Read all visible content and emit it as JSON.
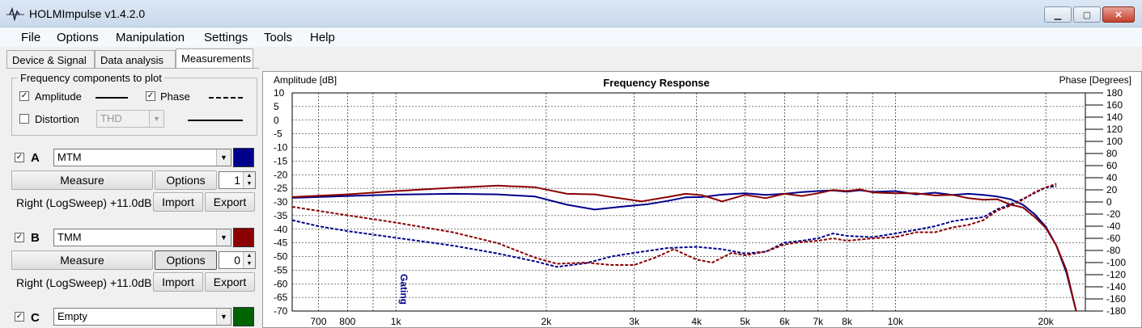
{
  "window": {
    "title": "HOLMImpulse  v1.4.2.0"
  },
  "menu": [
    "File",
    "Options",
    "Manipulation",
    "Settings",
    "Tools",
    "Help"
  ],
  "tabs": [
    "Device & Signal",
    "Data analysis",
    "Measurements"
  ],
  "plot_group": {
    "title": "Frequency components to plot",
    "amplitude_label": "Amplitude",
    "amplitude_checked": true,
    "phase_label": "Phase",
    "phase_checked": true,
    "distortion_label": "Distortion",
    "distortion_checked": false,
    "distortion_select": "THD"
  },
  "measurements": [
    {
      "letter": "A",
      "checked": true,
      "name": "MTM",
      "color": "#00008b",
      "measure_label": "Measure",
      "options_label": "Options",
      "count": "1",
      "info": "Right (LogSweep) +11.0dB",
      "import_label": "Import",
      "export_label": "Export"
    },
    {
      "letter": "B",
      "checked": true,
      "name": "TMM",
      "color": "#8b0000",
      "measure_label": "Measure",
      "options_label": "Options",
      "count": "0",
      "info": "Right (LogSweep) +11.0dB",
      "import_label": "Import",
      "export_label": "Export"
    },
    {
      "letter": "C",
      "checked": true,
      "name": "Empty",
      "color": "#006400"
    }
  ],
  "chart_data": {
    "type": "line",
    "title": "Frequency Response",
    "ylabel": "Amplitude [dB]",
    "y2label": "Phase [Degrees]",
    "xscale": "log",
    "xlim": [
      620,
      24000
    ],
    "ylim": [
      -70,
      10
    ],
    "y2lim": [
      -180,
      180
    ],
    "xticks": [
      700,
      800,
      1000,
      2000,
      3000,
      4000,
      5000,
      6000,
      7000,
      8000,
      10000,
      20000
    ],
    "xtick_labels": [
      "700",
      "800",
      "1k",
      "2k",
      "3k",
      "4k",
      "5k",
      "6k",
      "7k",
      "8k",
      "10k",
      "20k"
    ],
    "yticks": [
      "10",
      "5",
      "0",
      "-5",
      "-10",
      "-15",
      "-20",
      "-25",
      "-30",
      "-35",
      "-40",
      "-45",
      "-50",
      "-55",
      "-60",
      "-65",
      "-70"
    ],
    "y2ticks": [
      "180",
      "160",
      "140",
      "120",
      "100",
      "80",
      "60",
      "40",
      "20",
      "0",
      "-20",
      "-40",
      "-60",
      "-80",
      "-100",
      "-120",
      "-140",
      "-160",
      "-180"
    ],
    "grid": true,
    "annotation": {
      "text": "Gating",
      "x": 1000
    },
    "colors": {
      "A": "#00008b",
      "B": "#8b0000"
    },
    "series": [
      {
        "measurement": "A",
        "component": "amplitude",
        "style": "solid",
        "points": [
          [
            620,
            -28.5
          ],
          [
            800,
            -27.8
          ],
          [
            1000,
            -27.3
          ],
          [
            1300,
            -27.0
          ],
          [
            1600,
            -27.2
          ],
          [
            1900,
            -28.0
          ],
          [
            2200,
            -31.0
          ],
          [
            2500,
            -32.8
          ],
          [
            2800,
            -31.8
          ],
          [
            3200,
            -30.8
          ],
          [
            3500,
            -29.6
          ],
          [
            3800,
            -28.3
          ],
          [
            4100,
            -28.2
          ],
          [
            4500,
            -27.3
          ],
          [
            5000,
            -26.8
          ],
          [
            5500,
            -27.4
          ],
          [
            6000,
            -27.0
          ],
          [
            6500,
            -26.4
          ],
          [
            7000,
            -26.0
          ],
          [
            7500,
            -25.8
          ],
          [
            8000,
            -26.2
          ],
          [
            8500,
            -25.7
          ],
          [
            9000,
            -26.3
          ],
          [
            10000,
            -26.0
          ],
          [
            11000,
            -27.2
          ],
          [
            12000,
            -26.6
          ],
          [
            13000,
            -27.4
          ],
          [
            14000,
            -27.0
          ],
          [
            15000,
            -27.4
          ],
          [
            16000,
            -28.0
          ],
          [
            17000,
            -29.0
          ],
          [
            18000,
            -31.0
          ],
          [
            19000,
            -34.5
          ],
          [
            20000,
            -39.0
          ],
          [
            21000,
            -46.0
          ],
          [
            22000,
            -56.0
          ],
          [
            23000,
            -70.0
          ]
        ]
      },
      {
        "measurement": "B",
        "component": "amplitude",
        "style": "solid",
        "points": [
          [
            620,
            -28.2
          ],
          [
            800,
            -27.2
          ],
          [
            1000,
            -26.0
          ],
          [
            1300,
            -24.8
          ],
          [
            1600,
            -24.0
          ],
          [
            1900,
            -24.6
          ],
          [
            2200,
            -27.0
          ],
          [
            2500,
            -27.2
          ],
          [
            2800,
            -28.6
          ],
          [
            3100,
            -29.8
          ],
          [
            3500,
            -28.2
          ],
          [
            3800,
            -27.0
          ],
          [
            4100,
            -27.5
          ],
          [
            4500,
            -29.8
          ],
          [
            5000,
            -27.4
          ],
          [
            5500,
            -28.6
          ],
          [
            6000,
            -27.0
          ],
          [
            6500,
            -27.8
          ],
          [
            7000,
            -26.8
          ],
          [
            7500,
            -25.6
          ],
          [
            8000,
            -26.0
          ],
          [
            8500,
            -25.4
          ],
          [
            9000,
            -26.5
          ],
          [
            10000,
            -26.8
          ],
          [
            11000,
            -26.8
          ],
          [
            12000,
            -27.6
          ],
          [
            13000,
            -27.4
          ],
          [
            14000,
            -28.6
          ],
          [
            15000,
            -29.2
          ],
          [
            16000,
            -29.0
          ],
          [
            17000,
            -31.0
          ],
          [
            18000,
            -32.0
          ],
          [
            19000,
            -35.5
          ],
          [
            20000,
            -39.5
          ],
          [
            21000,
            -46.0
          ],
          [
            22000,
            -55.0
          ],
          [
            23000,
            -70.0
          ]
        ]
      },
      {
        "measurement": "A",
        "component": "phase",
        "style": "dashed",
        "points": [
          [
            620,
            -30
          ],
          [
            700,
            -40
          ],
          [
            800,
            -48
          ],
          [
            1000,
            -59
          ],
          [
            1300,
            -72
          ],
          [
            1600,
            -85
          ],
          [
            1900,
            -98
          ],
          [
            2100,
            -107
          ],
          [
            2400,
            -101
          ],
          [
            2700,
            -90
          ],
          [
            3000,
            -84
          ],
          [
            3500,
            -76
          ],
          [
            4000,
            -74
          ],
          [
            4500,
            -78
          ],
          [
            5000,
            -85
          ],
          [
            5500,
            -82
          ],
          [
            6000,
            -67
          ],
          [
            6500,
            -64
          ],
          [
            7000,
            -60
          ],
          [
            7500,
            -52
          ],
          [
            8000,
            -56
          ],
          [
            9000,
            -58
          ],
          [
            10000,
            -52
          ],
          [
            11000,
            -46
          ],
          [
            12000,
            -40
          ],
          [
            13000,
            -32
          ],
          [
            14000,
            -28
          ],
          [
            15000,
            -25
          ],
          [
            16000,
            -12
          ],
          [
            17000,
            -4
          ],
          [
            18000,
            5
          ],
          [
            19000,
            15
          ],
          [
            20000,
            24
          ],
          [
            21000,
            26
          ]
        ]
      },
      {
        "measurement": "B",
        "component": "phase",
        "style": "dashed",
        "points": [
          [
            620,
            -8
          ],
          [
            800,
            -22
          ],
          [
            1000,
            -34
          ],
          [
            1300,
            -50
          ],
          [
            1600,
            -68
          ],
          [
            1900,
            -92
          ],
          [
            2100,
            -102
          ],
          [
            2400,
            -100
          ],
          [
            2700,
            -104
          ],
          [
            3000,
            -104
          ],
          [
            3300,
            -92
          ],
          [
            3600,
            -78
          ],
          [
            4000,
            -95
          ],
          [
            4300,
            -100
          ],
          [
            4700,
            -84
          ],
          [
            5000,
            -88
          ],
          [
            5500,
            -82
          ],
          [
            6000,
            -70
          ],
          [
            6500,
            -66
          ],
          [
            7000,
            -64
          ],
          [
            7500,
            -60
          ],
          [
            8000,
            -64
          ],
          [
            9000,
            -60
          ],
          [
            10000,
            -58
          ],
          [
            11000,
            -50
          ],
          [
            12000,
            -50
          ],
          [
            13000,
            -42
          ],
          [
            14000,
            -38
          ],
          [
            15000,
            -30
          ],
          [
            16000,
            -14
          ],
          [
            17000,
            -6
          ],
          [
            18000,
            4
          ],
          [
            19000,
            16
          ],
          [
            20000,
            24
          ],
          [
            21000,
            30
          ]
        ]
      }
    ]
  }
}
